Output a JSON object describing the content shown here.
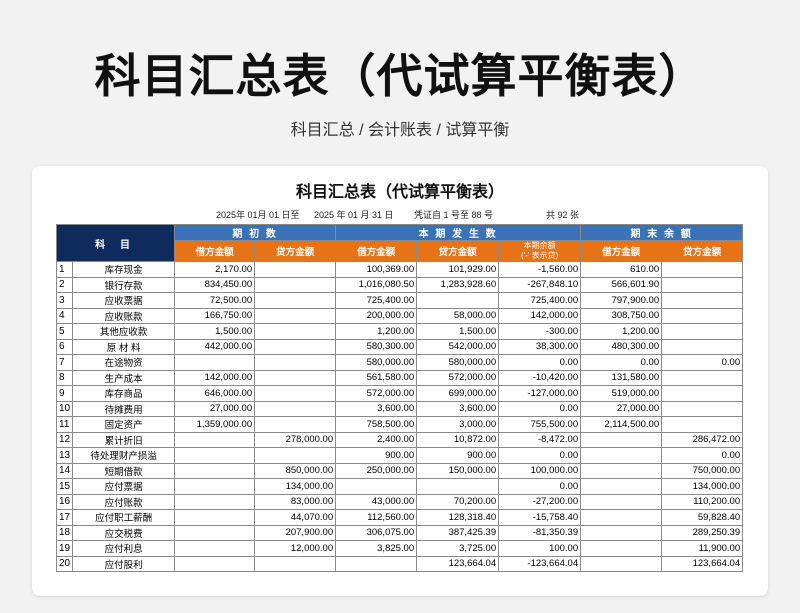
{
  "page": {
    "title": "科目汇总表（代试算平衡表）",
    "subtitle": "科目汇总 / 会计账表 / 试算平衡"
  },
  "sheet": {
    "title": "科目汇总表（代试算平衡表）",
    "date_from": "2025年 01月 01 日至",
    "date_to": "2025 年 01 月 31 日",
    "voucher": "凭证自 1  号至 88 号",
    "total": "共 92 张"
  },
  "header": {
    "subject": "科 目",
    "opening": "期 初 数",
    "current": "本 期 发 生 数",
    "closing": "期 末 余 额",
    "debit": "借方金额",
    "credit": "贷方金额",
    "current_balance": "本期余额",
    "current_balance_note": "('-' 表示贷)"
  },
  "rows": [
    {
      "no": "1",
      "name": "库存现金",
      "od": "2,170.00",
      "oc": "",
      "cd": "100,369.00",
      "cc": "101,929.00",
      "cb": "-1,560.00",
      "ed": "610.00",
      "ec": ""
    },
    {
      "no": "2",
      "name": "银行存款",
      "od": "834,450.00",
      "oc": "",
      "cd": "1,016,080.50",
      "cc": "1,283,928.60",
      "cb": "-267,848.10",
      "ed": "566,601.90",
      "ec": ""
    },
    {
      "no": "3",
      "name": "应收票据",
      "od": "72,500.00",
      "oc": "",
      "cd": "725,400.00",
      "cc": "",
      "cb": "725,400.00",
      "ed": "797,900.00",
      "ec": ""
    },
    {
      "no": "4",
      "name": "应收账款",
      "od": "166,750.00",
      "oc": "",
      "cd": "200,000.00",
      "cc": "58,000.00",
      "cb": "142,000.00",
      "ed": "308,750.00",
      "ec": ""
    },
    {
      "no": "5",
      "name": "其他应收款",
      "od": "1,500.00",
      "oc": "",
      "cd": "1,200.00",
      "cc": "1,500.00",
      "cb": "-300.00",
      "ed": "1,200.00",
      "ec": ""
    },
    {
      "no": "6",
      "name": "原 材 料",
      "od": "442,000.00",
      "oc": "",
      "cd": "580,300.00",
      "cc": "542,000.00",
      "cb": "38,300.00",
      "ed": "480,300.00",
      "ec": ""
    },
    {
      "no": "7",
      "name": "在途物资",
      "od": "",
      "oc": "",
      "cd": "580,000.00",
      "cc": "580,000.00",
      "cb": "0.00",
      "ed": "0.00",
      "ec": "0.00"
    },
    {
      "no": "8",
      "name": "生产成本",
      "od": "142,000.00",
      "oc": "",
      "cd": "561,580.00",
      "cc": "572,000.00",
      "cb": "-10,420.00",
      "ed": "131,580.00",
      "ec": ""
    },
    {
      "no": "9",
      "name": "库存商品",
      "od": "646,000.00",
      "oc": "",
      "cd": "572,000.00",
      "cc": "699,000.00",
      "cb": "-127,000.00",
      "ed": "519,000.00",
      "ec": ""
    },
    {
      "no": "10",
      "name": "待摊费用",
      "od": "27,000.00",
      "oc": "",
      "cd": "3,600.00",
      "cc": "3,600.00",
      "cb": "0.00",
      "ed": "27,000.00",
      "ec": ""
    },
    {
      "no": "11",
      "name": "固定资产",
      "od": "1,359,000.00",
      "oc": "",
      "cd": "758,500.00",
      "cc": "3,000.00",
      "cb": "755,500.00",
      "ed": "2,114,500.00",
      "ec": ""
    },
    {
      "no": "12",
      "name": "累计折旧",
      "od": "",
      "oc": "278,000.00",
      "cd": "2,400.00",
      "cc": "10,872.00",
      "cb": "-8,472.00",
      "ed": "",
      "ec": "286,472.00"
    },
    {
      "no": "13",
      "name": "待处理财产损溢",
      "od": "",
      "oc": "",
      "cd": "900.00",
      "cc": "900.00",
      "cb": "0.00",
      "ed": "",
      "ec": "0.00"
    },
    {
      "no": "14",
      "name": "短期借款",
      "od": "",
      "oc": "850,000.00",
      "cd": "250,000.00",
      "cc": "150,000.00",
      "cb": "100,000.00",
      "ed": "",
      "ec": "750,000.00"
    },
    {
      "no": "15",
      "name": "应付票据",
      "od": "",
      "oc": "134,000.00",
      "cd": "",
      "cc": "",
      "cb": "0.00",
      "ed": "",
      "ec": "134,000.00"
    },
    {
      "no": "16",
      "name": "应付账款",
      "od": "",
      "oc": "83,000.00",
      "cd": "43,000.00",
      "cc": "70,200.00",
      "cb": "-27,200.00",
      "ed": "",
      "ec": "110,200.00"
    },
    {
      "no": "17",
      "name": "应付职工薪酬",
      "od": "",
      "oc": "44,070.00",
      "cd": "112,560.00",
      "cc": "128,318.40",
      "cb": "-15,758.40",
      "ed": "",
      "ec": "59,828.40"
    },
    {
      "no": "18",
      "name": "应交税费",
      "od": "",
      "oc": "207,900.00",
      "cd": "306,075.00",
      "cc": "387,425.39",
      "cb": "-81,350.39",
      "ed": "",
      "ec": "289,250.39"
    },
    {
      "no": "19",
      "name": "应付利息",
      "od": "",
      "oc": "12,000.00",
      "cd": "3,825.00",
      "cc": "3,725.00",
      "cb": "100.00",
      "ed": "",
      "ec": "11,900.00"
    },
    {
      "no": "20",
      "name": "应付股利",
      "od": "",
      "oc": "",
      "cd": "",
      "cc": "123,664.04",
      "cb": "-123,664.04",
      "ed": "",
      "ec": "123,664.04"
    }
  ]
}
